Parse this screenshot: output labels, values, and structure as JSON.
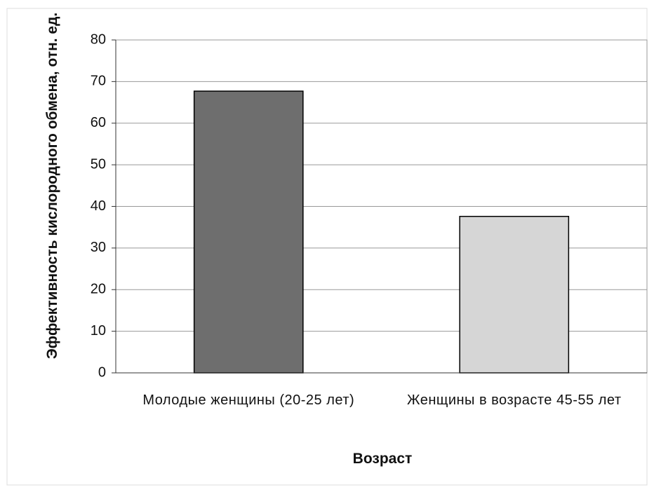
{
  "chart_data": {
    "type": "bar",
    "categories": [
      "Молодые женщины (20-25 лет)",
      "Женщины в возрасте 45-55 лет"
    ],
    "values": [
      67.7,
      37.6
    ],
    "colors": [
      "#6e6e6e",
      "#d6d6d6"
    ],
    "ylim": [
      0,
      80
    ],
    "yticks": [
      0,
      10,
      20,
      30,
      40,
      50,
      60,
      70,
      80
    ],
    "grid": true,
    "x_label": "Возраст",
    "y_label": "Эффективность кислородного обмена, отн. ед."
  }
}
